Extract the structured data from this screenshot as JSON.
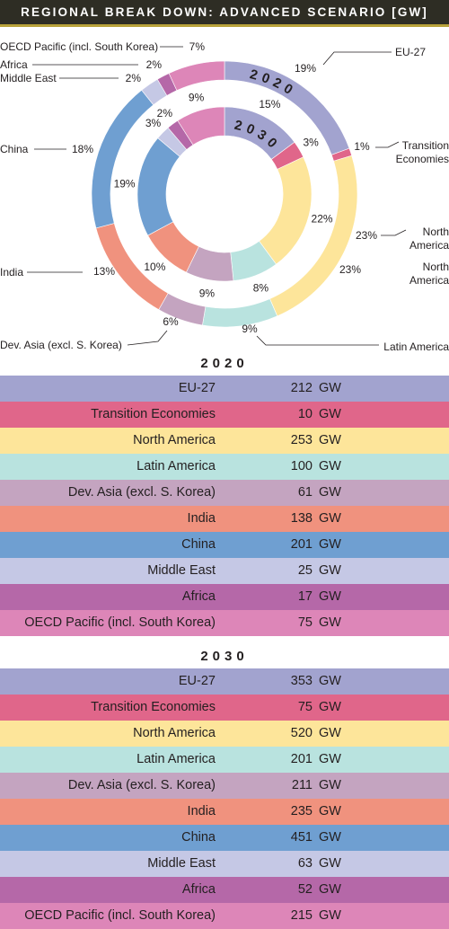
{
  "title": "REGIONAL BREAK DOWN: ADVANCED SCENARIO [GW]",
  "unit": "GW",
  "colors": {
    "EU-27": "#a2a3cf",
    "Transition Economies": "#e0668a",
    "North America": "#fde59a",
    "Latin America": "#b9e3df",
    "Dev. Asia (excl. S. Korea)": "#c4a4c0",
    "India": "#f0927e",
    "China": "#6f9fd1",
    "Middle East": "#c5c8e5",
    "Africa": "#b568a8",
    "OECD Pacific (incl. South Korea)": "#dd86b8"
  },
  "chart_data": {
    "type": "pie",
    "categories": [
      "EU-27",
      "Transition Economies",
      "North America",
      "Latin America",
      "Dev. Asia (excl. S. Korea)",
      "India",
      "China",
      "Middle East",
      "Africa",
      "OECD Pacific (incl. South Korea)"
    ],
    "series": [
      {
        "name": "2020",
        "values": [
          212,
          10,
          253,
          100,
          61,
          138,
          201,
          25,
          17,
          75
        ],
        "pct_labels": [
          "19%",
          "1%",
          "23%",
          "9%",
          "6%",
          "13%",
          "18%",
          "2%",
          "2%",
          "7%"
        ]
      },
      {
        "name": "2030",
        "values": [
          353,
          75,
          520,
          201,
          211,
          235,
          451,
          63,
          52,
          215
        ],
        "pct_labels": [
          "15%",
          "3%",
          "22%",
          "8%",
          "9%",
          "10%",
          "19%",
          "3%",
          "2%",
          "9%"
        ]
      }
    ],
    "region_labels_2020": [
      "EU-27",
      "Transition Economies",
      "North America",
      "Latin America",
      "Dev. Asia (excl. S. Korea)",
      "India",
      "China",
      "Middle East",
      "Africa",
      "OECD Pacific (incl. South Korea)"
    ],
    "extra_label": "North America"
  },
  "tables": [
    {
      "year": "2020",
      "rows": [
        {
          "name": "EU-27",
          "value": "212"
        },
        {
          "name": "Transition Economies",
          "value": "10"
        },
        {
          "name": "North America",
          "value": "253"
        },
        {
          "name": "Latin America",
          "value": "100"
        },
        {
          "name": "Dev. Asia (excl. S. Korea)",
          "value": "61"
        },
        {
          "name": "India",
          "value": "138"
        },
        {
          "name": "China",
          "value": "201"
        },
        {
          "name": "Middle East",
          "value": "25"
        },
        {
          "name": "Africa",
          "value": "17"
        },
        {
          "name": "OECD Pacific (incl. South Korea)",
          "value": "75"
        }
      ]
    },
    {
      "year": "2030",
      "rows": [
        {
          "name": "EU-27",
          "value": "353"
        },
        {
          "name": "Transition Economies",
          "value": "75"
        },
        {
          "name": "North America",
          "value": "520"
        },
        {
          "name": "Latin America",
          "value": "201"
        },
        {
          "name": "Dev. Asia (excl. S. Korea)",
          "value": "211"
        },
        {
          "name": "India",
          "value": "235"
        },
        {
          "name": "China",
          "value": "451"
        },
        {
          "name": "Middle East",
          "value": "63"
        },
        {
          "name": "Africa",
          "value": "52"
        },
        {
          "name": "OECD Pacific (incl. South Korea)",
          "value": "215"
        }
      ]
    }
  ]
}
